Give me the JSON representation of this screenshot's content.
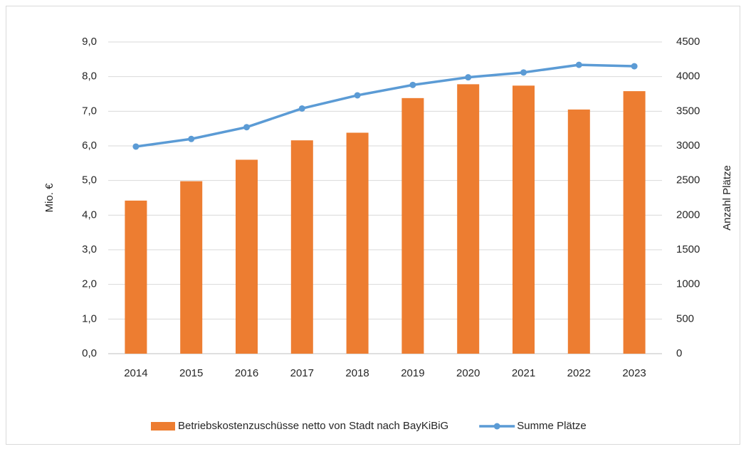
{
  "chart_data": {
    "type": "bar",
    "categories": [
      "2014",
      "2015",
      "2016",
      "2017",
      "2018",
      "2019",
      "2020",
      "2021",
      "2022",
      "2023"
    ],
    "series": [
      {
        "name": "Betriebskostenzuschüsse netto von Stadt nach BayKiBiG",
        "type": "bar",
        "color": "#ed7d31",
        "values": [
          4.42,
          4.98,
          5.6,
          6.16,
          6.38,
          7.38,
          7.78,
          7.74,
          7.05,
          7.58
        ]
      },
      {
        "name": "Summe Plätze",
        "type": "line",
        "axis": "y2",
        "color": "#5b9bd5",
        "values": [
          2990,
          3100,
          3270,
          3540,
          3730,
          3880,
          3990,
          4060,
          4170,
          4150
        ]
      }
    ],
    "ylabel": "Mio. €",
    "y2label": "Anzahl Plätze",
    "ylim": [
      0,
      9
    ],
    "yticks": [
      {
        "value": 0,
        "label": "0,0"
      },
      {
        "value": 1,
        "label": "1,0"
      },
      {
        "value": 2,
        "label": "2,0"
      },
      {
        "value": 3,
        "label": "3,0"
      },
      {
        "value": 4,
        "label": "4,0"
      },
      {
        "value": 5,
        "label": "5,0"
      },
      {
        "value": 6,
        "label": "6,0"
      },
      {
        "value": 7,
        "label": "7,0"
      },
      {
        "value": 8,
        "label": "8,0"
      },
      {
        "value": 9,
        "label": "9,0"
      }
    ],
    "y2lim": [
      0,
      4500
    ],
    "y2ticks": [
      0,
      500,
      1000,
      1500,
      2000,
      2500,
      3000,
      3500,
      4000,
      4500
    ],
    "grid": true,
    "legend": "bottom"
  }
}
